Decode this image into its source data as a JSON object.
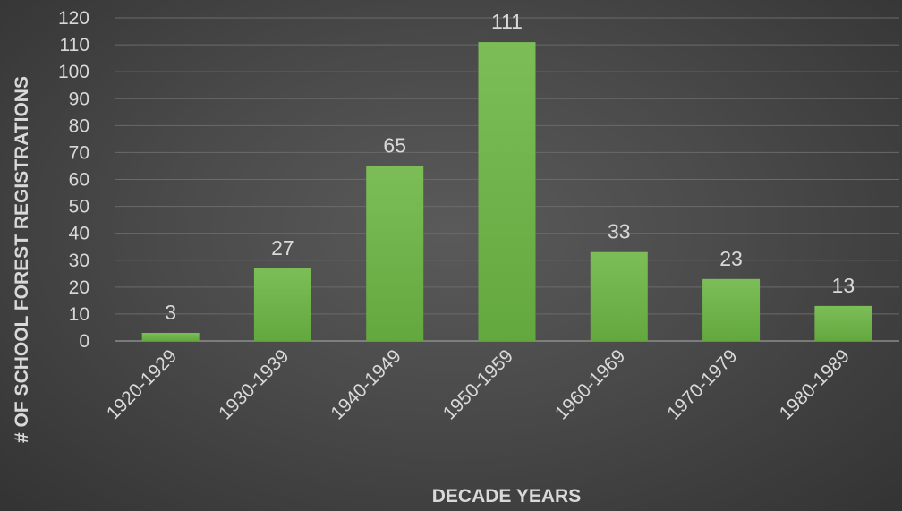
{
  "chart_data": {
    "type": "bar",
    "categories": [
      "1920-1929",
      "1930-1939",
      "1940-1949",
      "1950-1959",
      "1960-1969",
      "1970-1979",
      "1980-1989"
    ],
    "values": [
      3,
      27,
      65,
      111,
      33,
      23,
      13
    ],
    "xlabel": "DECADE YEARS",
    "ylabel": "# OF SCHOOL FOREST REGISTRATIONS",
    "ylim": [
      0,
      120
    ],
    "yticks": [
      0,
      10,
      20,
      30,
      40,
      50,
      60,
      70,
      80,
      90,
      100,
      110,
      120
    ],
    "grid": true,
    "legend": "none",
    "colors": {
      "bar": "#6aae45",
      "bar_light": "#7cbd57",
      "background": "#4a4a4a",
      "text": "#d9d9d9"
    }
  }
}
